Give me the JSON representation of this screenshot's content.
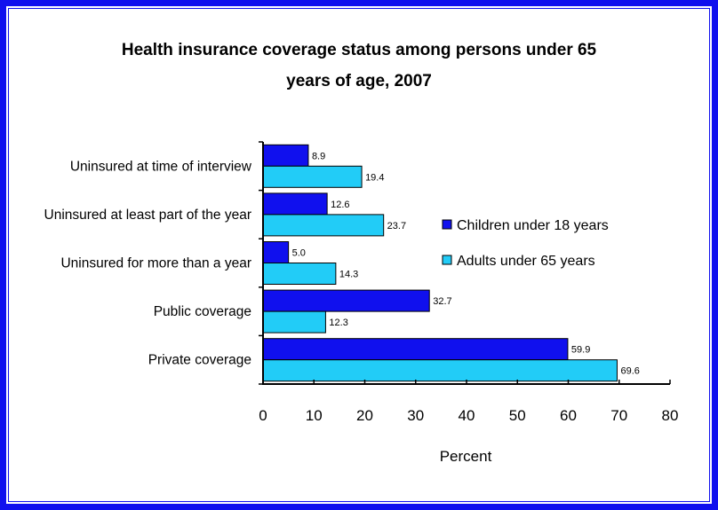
{
  "chart_data": {
    "type": "bar",
    "orientation": "horizontal",
    "title_lines": [
      "Health insurance coverage status among persons under 65",
      "years of age, 2007"
    ],
    "xlabel": "Percent",
    "ylabel": "",
    "xlim": [
      0,
      80
    ],
    "xticks": [
      "0",
      "10",
      "20",
      "30",
      "40",
      "50",
      "60",
      "70",
      "80"
    ],
    "categories": [
      "Uninsured at time of interview",
      "Uninsured at least part of the year",
      "Uninsured for more than a year",
      "Public coverage",
      "Private coverage"
    ],
    "series": [
      {
        "name": "Children under 18 years",
        "color": "#1010ee",
        "values": [
          8.9,
          12.6,
          5.0,
          32.7,
          59.9
        ],
        "labels": [
          "8.9",
          "12.6",
          "5.0",
          "32.7",
          "59.9"
        ]
      },
      {
        "name": "Adults under 65 years",
        "color": "#22ccf7",
        "values": [
          19.4,
          23.7,
          14.3,
          12.3,
          69.6
        ],
        "labels": [
          "19.4",
          "23.7",
          "14.3",
          "12.3",
          "69.6"
        ]
      }
    ],
    "legend_position": "right",
    "grid": false
  },
  "colors": {
    "frame": "#1010ee"
  }
}
